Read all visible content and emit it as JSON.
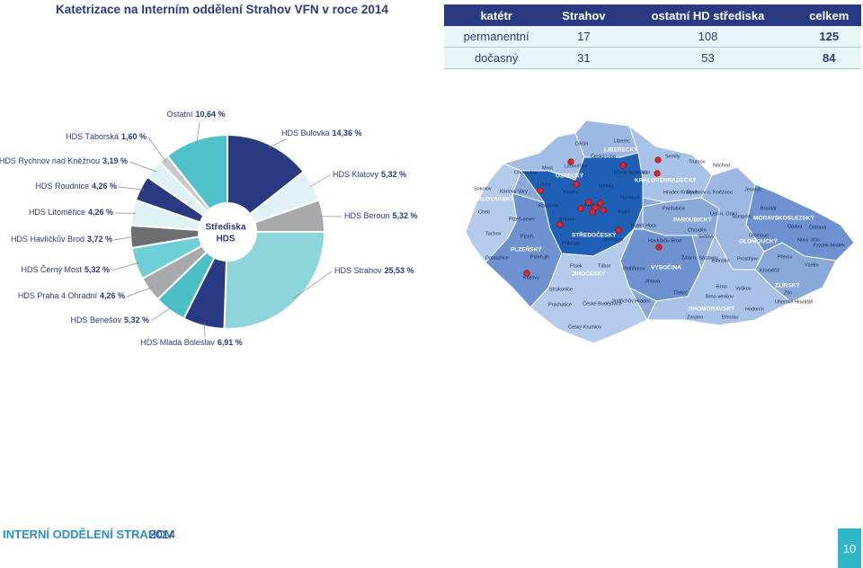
{
  "title": "Katetrizace na Interním oddělení Strahov VFN v roce 2014",
  "table": {
    "header": [
      "katétr",
      "Strahov",
      "ostatní HD střediska",
      "celkem"
    ],
    "rows": [
      [
        "permanentní",
        "17",
        "108",
        "125"
      ],
      [
        "dočasný",
        "31",
        "53",
        "84"
      ]
    ]
  },
  "chart_data": {
    "type": "pie",
    "center_label": [
      "Střediska",
      "HDS"
    ],
    "categories": [
      "HDS Bulovka",
      "HDS Klatovy",
      "HDS Beroun",
      "HDS Strahov",
      "HDS Mladá Boleslav",
      "HDS Benešov",
      "HDS Praha 4 Ohradní",
      "HDS Černý Most",
      "HDS Havlíčkův Brod",
      "HDS Litoměřice",
      "HDS Roudnice",
      "HDS Rychnov nad Kněžnou",
      "HDS Táborská",
      "Ostatní"
    ],
    "values": [
      14.36,
      5.32,
      5.32,
      25.53,
      6.91,
      5.32,
      4.26,
      5.32,
      3.72,
      4.26,
      4.26,
      3.19,
      1.6,
      10.64
    ],
    "value_labels": [
      "14,36 %",
      "5,32 %",
      "5,32 %",
      "25,53 %",
      "6,91 %",
      "5,32 %",
      "4,26 %",
      "5,32 %",
      "3,72 %",
      "4,26 %",
      "4,26 %",
      "3,19 %",
      "1,60 %",
      "10,64 %"
    ],
    "colors": [
      "#2a3a82",
      "#dff2f5",
      "#a7a9ac",
      "#8dd4db",
      "#2a3a82",
      "#4cbfc6",
      "#a7a9ac",
      "#6fcfd6",
      "#6d6e71",
      "#dff2f5",
      "#2a3a82",
      "#dff2f5",
      "#c9cacc",
      "#4fc1c9"
    ]
  },
  "map": {
    "labels": [
      "Děčín",
      "Liberec",
      "Česká Lípa",
      "LIBERECKÝ",
      "Semily",
      "Trutnov",
      "Chomutov",
      "Most",
      "Litoměřice",
      "ÚSTECKÝ",
      "Mladá Boleslav",
      "Jičín",
      "Náchod",
      "KRÁLOVÉHRADECKÝ",
      "Karlovy Vary",
      "Sokolov",
      "KARLOVARSKÝ",
      "Louny",
      "Kladno",
      "Mělník",
      "Nymburk",
      "Hradec Králové",
      "Rychnov n. Kněžnou",
      "Jeseník",
      "Bruntál",
      "Rakovník",
      "Praha",
      "Kolín",
      "Cheb",
      "Plzeň-sever",
      "Beroun",
      "Kutná Hora",
      "Pardubice",
      "Ústí n. Orlicí",
      "PARDUBICKÝ",
      "Šumperk",
      "MORAVSKOSLEZSKÝ",
      "Opava",
      "Ostrava",
      "Chrudim",
      "Tachov",
      "Plzeň",
      "STŘEDOČESKÝ",
      "Benešov",
      "Příbram",
      "Havlíčkův Brod",
      "Svitavy",
      "Olomouc",
      "OLOMOUCKÝ",
      "Nový Jičín",
      "Frýdek-Místek",
      "PLZEŇSKÝ",
      "Domažlice",
      "Plzeň-jih",
      "Žďár n. Sázavou",
      "Blansko",
      "Prostějov",
      "Přerov",
      "Vsetín",
      "Písek",
      "Tábor",
      "Pelhřimov",
      "VYSOČINA",
      "Klatovy",
      "JIHOČESKÝ",
      "Jihlava",
      "Kroměříž",
      "ZLÍNSKÝ",
      "Zlín",
      "Vyškov",
      "Brno",
      "Strakonice",
      "Třebíč",
      "Brno-venkov",
      "Uherské Hradiště",
      "Prachatice",
      "České Budějovice",
      "Jindřichův Hradec",
      "Hodonín",
      "JIHOMORAVSKÝ",
      "Znojmo",
      "Břeclav",
      "Český Krumlov"
    ]
  },
  "footer": {
    "department": "INTERNÍ ODDĚLENÍ STRAHOV",
    "year": "2014",
    "page": "10"
  }
}
